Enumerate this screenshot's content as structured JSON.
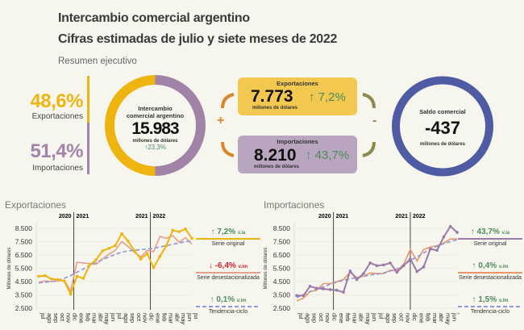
{
  "header": {
    "title": "Intercambio comercial argentino",
    "subtitle": "Cifras estimadas de julio y siete meses de 2022",
    "section": "Resumen ejecutivo"
  },
  "summary": {
    "export_share": "48,6%",
    "export_share_label": "Exportaciones",
    "import_share": "51,4%",
    "import_share_label": "Importaciones",
    "intercambio": {
      "label": "Intercambio comercial argentino",
      "value": "15.983",
      "unit": "millones de dólares",
      "change": "23,3%"
    },
    "exportaciones": {
      "label": "Exportaciones",
      "value": "7.773",
      "unit": "millones de dólares",
      "change": "7,2%"
    },
    "importaciones": {
      "label": "Importaciones",
      "value": "8.210",
      "unit": "millones de dólares",
      "change": "43,7%"
    },
    "saldo": {
      "label": "Saldo comercial",
      "value": "-437",
      "unit": "millones de dólares"
    },
    "plus": "+",
    "minus": "-",
    "colors": {
      "export": "#eeb511",
      "import": "#a283a8",
      "saldo": "#4f5ca3",
      "up": "#4a8c5c",
      "down": "#d0202a"
    }
  },
  "chart_data": [
    {
      "type": "line",
      "title": "Exportaciones",
      "ylabel": "Millones de dólares",
      "ylim": [
        2500,
        8500
      ],
      "yticks": [
        "2.500",
        "3.500",
        "4.500",
        "5.500",
        "6.500",
        "7.500",
        "8.500"
      ],
      "year_marks": [
        {
          "left": "2020",
          "right": "2021"
        },
        {
          "left": "2021",
          "right": "2022"
        }
      ],
      "categories": [
        "jul",
        "ago",
        "sep",
        "oct",
        "nov",
        "dic",
        "ene",
        "feb",
        "mar",
        "abr",
        "may",
        "jun",
        "jul",
        "ago",
        "sep",
        "oct",
        "nov",
        "dic",
        "ene",
        "feb",
        "mar",
        "abr",
        "may",
        "jun",
        "jul"
      ],
      "series": [
        {
          "name": "Serie original",
          "color": "#f0b40f",
          "change": "7,2%",
          "unit": "v.ia",
          "direction": "up",
          "values": [
            4900,
            4950,
            4700,
            4650,
            4550,
            3550,
            4900,
            4750,
            5750,
            6150,
            6800,
            7000,
            7200,
            8100,
            7550,
            6800,
            6200,
            6600,
            5550,
            6400,
            7200,
            8350,
            8250,
            8450,
            7750
          ]
        },
        {
          "name": "Serie desestacionalizada",
          "color": "#e0a08a",
          "change": "-6,4%",
          "unit": "v.im",
          "direction": "down",
          "values": [
            4450,
            4550,
            4500,
            4550,
            4600,
            3800,
            5950,
            5900,
            5850,
            5800,
            6200,
            6550,
            6850,
            7500,
            7150,
            6700,
            6350,
            6850,
            6750,
            7900,
            7750,
            7950,
            7450,
            7800,
            7300
          ]
        },
        {
          "name": "Tendencia-ciclo",
          "color": "#8e97d8",
          "change": "0,1%",
          "unit": "v.im",
          "direction": "up",
          "values": [
            4400,
            4450,
            4500,
            4600,
            4750,
            4950,
            5200,
            5450,
            5700,
            5950,
            6150,
            6350,
            6550,
            6700,
            6800,
            6850,
            6900,
            6950,
            7000,
            7100,
            7200,
            7300,
            7400,
            7500,
            7550
          ]
        }
      ]
    },
    {
      "type": "line",
      "title": "Importaciones",
      "ylabel": "Millones de dólares",
      "ylim": [
        2500,
        8500
      ],
      "yticks": [
        "2.500",
        "3.500",
        "4.500",
        "5.500",
        "6.500",
        "7.500",
        "8.500"
      ],
      "year_marks": [
        {
          "left": "2020",
          "right": "2021"
        },
        {
          "left": "2021",
          "right": "2022"
        }
      ],
      "categories": [
        "jul",
        "ago",
        "sep",
        "oct",
        "nov",
        "dic",
        "ene",
        "feb",
        "mar",
        "abr",
        "may",
        "jun",
        "jul",
        "ago",
        "sep",
        "oct",
        "nov",
        "dic",
        "ene",
        "feb",
        "mar",
        "abr",
        "may",
        "jun",
        "jul"
      ],
      "series": [
        {
          "name": "Serie original",
          "color": "#9a7aa6",
          "change": "43,7%",
          "unit": "v.ia",
          "direction": "up",
          "values": [
            3450,
            3450,
            4150,
            4000,
            3950,
            3900,
            3850,
            3700,
            5300,
            4650,
            5100,
            5900,
            5700,
            5750,
            5900,
            5200,
            5700,
            6200,
            5250,
            5600,
            6950,
            6850,
            7850,
            8650,
            8200
          ]
        },
        {
          "name": "Serie desestacionalizada",
          "color": "#e8956a",
          "change": "0,4%",
          "unit": "v.im",
          "direction": "up",
          "values": [
            3050,
            3250,
            3750,
            3850,
            4350,
            4350,
            4500,
            4650,
            5200,
            4800,
            4900,
            5150,
            5100,
            5100,
            5350,
            5300,
            5800,
            6900,
            6050,
            6900,
            7100,
            7200,
            7400,
            7700,
            7700
          ]
        },
        {
          "name": "Tendencia-ciclo",
          "color": "#8e97d8",
          "change": "1,5%",
          "unit": "v.im",
          "direction": "up",
          "values": [
            3300,
            3500,
            3750,
            3950,
            4100,
            4300,
            4450,
            4600,
            4700,
            4800,
            4900,
            5000,
            5050,
            5150,
            5300,
            5450,
            5700,
            6100,
            6350,
            6650,
            6950,
            7150,
            7350,
            7500,
            7650
          ]
        }
      ]
    }
  ]
}
